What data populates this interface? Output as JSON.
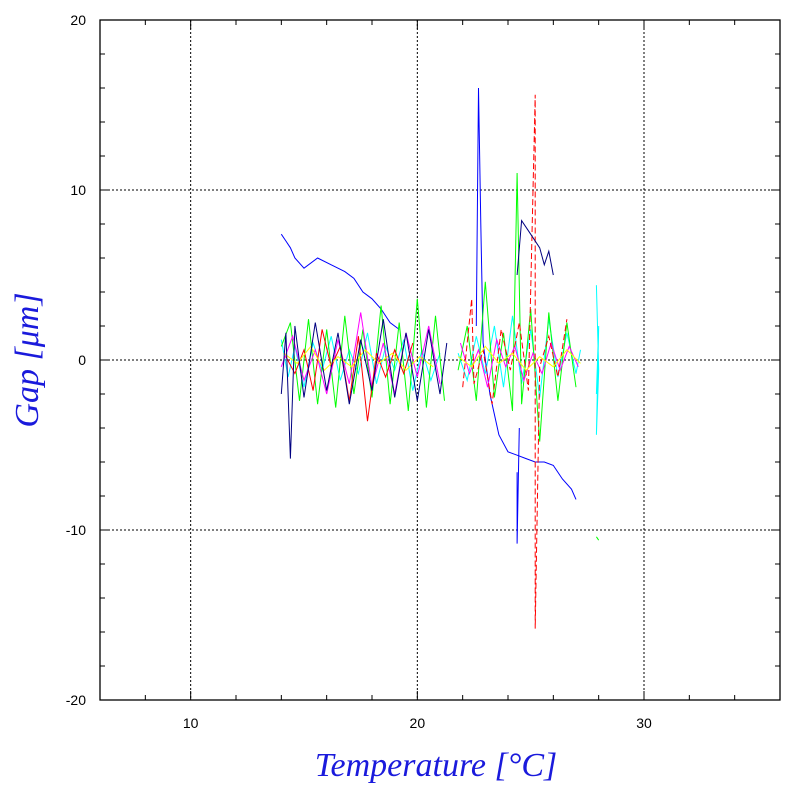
{
  "chart_data": {
    "type": "line",
    "title": "",
    "xlabel": "Temperature [°C]",
    "ylabel": "Gap [μm]",
    "xlim": [
      6,
      36
    ],
    "ylim": [
      -20,
      20
    ],
    "x_ticks": [
      10,
      20,
      30
    ],
    "y_ticks": [
      -20,
      -10,
      0,
      10,
      20
    ],
    "x_tick_labels": [
      "10",
      "20",
      "30"
    ],
    "y_tick_labels": [
      "-20",
      "-10",
      "0",
      "10",
      "20"
    ],
    "grid": true,
    "legend": "none",
    "series_colors": [
      "#0000ff",
      "#00ffff",
      "#00ff00",
      "#ff00ff",
      "#ff0000",
      "#ffff00",
      "#000080"
    ],
    "series": [
      {
        "values": [
          [
            14.0,
            7.4
          ],
          [
            14.2,
            7.0
          ],
          [
            14.4,
            6.6
          ],
          [
            14.6,
            6.0
          ],
          [
            15.0,
            5.4
          ],
          [
            15.6,
            6.0
          ],
          [
            16.2,
            5.6
          ],
          [
            16.8,
            5.2
          ],
          [
            17.2,
            4.8
          ],
          [
            17.6,
            4.0
          ],
          [
            18.0,
            3.6
          ],
          [
            18.4,
            3.0
          ],
          [
            18.8,
            2.2
          ],
          [
            19.2,
            1.8
          ]
        ]
      },
      {
        "values": [
          [
            14.0,
            1.2
          ],
          [
            14.3,
            -1.0
          ],
          [
            14.6,
            0.8
          ],
          [
            15.0,
            -1.6
          ],
          [
            15.4,
            1.0
          ],
          [
            15.8,
            -0.6
          ],
          [
            16.2,
            1.4
          ],
          [
            16.6,
            -1.2
          ],
          [
            17.0,
            0.6
          ],
          [
            17.4,
            -0.8
          ],
          [
            17.8,
            1.6
          ],
          [
            18.2,
            -1.4
          ],
          [
            18.6,
            0.8
          ],
          [
            19.0,
            -0.6
          ],
          [
            19.4,
            1.2
          ],
          [
            19.8,
            -1.8
          ],
          [
            20.2,
            0.6
          ],
          [
            20.6,
            -1.2
          ],
          [
            21.0,
            0.4
          ]
        ]
      },
      {
        "values": [
          [
            14.0,
            0.8
          ],
          [
            14.4,
            2.2
          ],
          [
            14.8,
            -2.4
          ],
          [
            15.2,
            2.4
          ],
          [
            15.6,
            -2.6
          ],
          [
            16.0,
            1.8
          ],
          [
            16.4,
            -2.8
          ],
          [
            16.8,
            2.6
          ],
          [
            17.2,
            -2.0
          ],
          [
            17.6,
            1.8
          ],
          [
            18.0,
            -2.2
          ],
          [
            18.4,
            3.2
          ],
          [
            18.8,
            -2.6
          ],
          [
            19.2,
            2.2
          ],
          [
            19.6,
            -3.0
          ],
          [
            20.0,
            3.6
          ],
          [
            20.4,
            -2.8
          ],
          [
            20.8,
            2.6
          ],
          [
            21.2,
            -2.4
          ]
        ]
      },
      {
        "values": [
          [
            14.0,
            -0.4
          ],
          [
            14.5,
            1.4
          ],
          [
            15.0,
            -1.2
          ],
          [
            15.5,
            0.6
          ],
          [
            16.0,
            -2.0
          ],
          [
            16.5,
            1.2
          ],
          [
            17.0,
            -1.4
          ],
          [
            17.5,
            2.8
          ],
          [
            18.0,
            -1.6
          ],
          [
            18.5,
            1.0
          ],
          [
            19.0,
            -2.0
          ],
          [
            19.5,
            1.6
          ],
          [
            20.0,
            -1.0
          ],
          [
            20.5,
            2.0
          ],
          [
            21.0,
            -1.4
          ]
        ]
      },
      {
        "values": [
          [
            14.2,
            0.2
          ],
          [
            14.6,
            -0.8
          ],
          [
            15.0,
            0.6
          ],
          [
            15.4,
            -1.8
          ],
          [
            15.8,
            1.8
          ],
          [
            16.2,
            -0.4
          ],
          [
            16.6,
            0.8
          ],
          [
            17.0,
            -2.4
          ],
          [
            17.4,
            1.4
          ],
          [
            17.8,
            -3.6
          ],
          [
            18.2,
            0.4
          ],
          [
            18.6,
            -1.0
          ],
          [
            19.0,
            0.6
          ],
          [
            19.4,
            -0.8
          ],
          [
            19.8,
            1.0
          ]
        ]
      },
      {
        "values": [
          [
            14.1,
            0.4
          ],
          [
            14.7,
            -0.2
          ],
          [
            15.3,
            0.8
          ],
          [
            15.9,
            -0.6
          ],
          [
            16.5,
            0.2
          ],
          [
            17.1,
            -0.4
          ],
          [
            17.7,
            0.6
          ],
          [
            18.3,
            -0.2
          ],
          [
            18.9,
            0.4
          ],
          [
            19.5,
            -0.6
          ],
          [
            20.1,
            0.2
          ],
          [
            20.7,
            -0.4
          ]
        ]
      },
      {
        "values": [
          [
            14.0,
            -2.0
          ],
          [
            14.2,
            1.6
          ],
          [
            14.4,
            -5.8
          ],
          [
            14.6,
            2.0
          ],
          [
            15.0,
            -2.2
          ],
          [
            15.5,
            2.2
          ],
          [
            16.0,
            -1.8
          ],
          [
            16.5,
            1.6
          ],
          [
            17.0,
            -2.6
          ],
          [
            17.5,
            1.2
          ],
          [
            18.0,
            -1.8
          ],
          [
            18.5,
            2.4
          ],
          [
            19.0,
            -2.2
          ],
          [
            19.5,
            1.6
          ],
          [
            20.0,
            -2.4
          ],
          [
            20.5,
            1.8
          ],
          [
            21.0,
            -2.0
          ],
          [
            21.3,
            1.0
          ]
        ]
      },
      {
        "values": [
          [
            22.6,
            2.0
          ],
          [
            22.7,
            16.0
          ],
          [
            22.8,
            8.0
          ],
          [
            22.9,
            1.0
          ],
          [
            23.2,
            -2.0
          ],
          [
            23.6,
            -4.4
          ],
          [
            24.0,
            -5.4
          ],
          [
            24.4,
            -5.6
          ],
          [
            24.8,
            -5.8
          ],
          [
            25.2,
            -6.0
          ],
          [
            25.6,
            -6.0
          ],
          [
            26.0,
            -6.2
          ],
          [
            26.4,
            -7.0
          ],
          [
            26.8,
            -7.6
          ],
          [
            27.0,
            -8.2
          ]
        ]
      },
      {
        "values": [
          [
            21.8,
            0.4
          ],
          [
            22.2,
            -1.2
          ],
          [
            22.6,
            1.4
          ],
          [
            23.0,
            -0.8
          ],
          [
            23.4,
            2.0
          ],
          [
            23.8,
            -1.6
          ],
          [
            24.2,
            2.6
          ],
          [
            24.6,
            -1.4
          ],
          [
            25.0,
            1.8
          ],
          [
            25.4,
            -2.2
          ],
          [
            25.8,
            2.4
          ],
          [
            26.2,
            -1.0
          ],
          [
            26.6,
            1.6
          ],
          [
            27.0,
            -0.8
          ],
          [
            27.2,
            0.6
          ]
        ]
      },
      {
        "values": [
          [
            21.8,
            -0.6
          ],
          [
            22.2,
            2.0
          ],
          [
            22.6,
            -2.4
          ],
          [
            23.0,
            4.6
          ],
          [
            23.4,
            -2.2
          ],
          [
            23.8,
            1.6
          ],
          [
            24.2,
            -3.0
          ],
          [
            24.4,
            11.0
          ],
          [
            24.6,
            -2.6
          ],
          [
            25.0,
            3.0
          ],
          [
            25.4,
            -4.8
          ],
          [
            25.8,
            2.8
          ],
          [
            26.2,
            -2.4
          ],
          [
            26.6,
            2.2
          ],
          [
            27.0,
            -1.6
          ]
        ]
      },
      {
        "values": [
          [
            21.9,
            1.0
          ],
          [
            22.3,
            -0.8
          ],
          [
            22.7,
            0.6
          ],
          [
            23.1,
            -1.6
          ],
          [
            23.5,
            1.2
          ],
          [
            23.9,
            -0.4
          ],
          [
            24.3,
            0.8
          ],
          [
            24.7,
            -1.2
          ],
          [
            25.1,
            0.4
          ],
          [
            25.5,
            -0.8
          ],
          [
            25.9,
            1.0
          ],
          [
            26.3,
            -0.6
          ],
          [
            26.7,
            0.8
          ],
          [
            27.1,
            -0.4
          ]
        ]
      },
      {
        "values": [
          [
            22.0,
            -1.6
          ],
          [
            22.4,
            3.6
          ],
          [
            22.5,
            -1.4
          ],
          [
            22.9,
            0.6
          ],
          [
            23.3,
            -2.6
          ],
          [
            23.7,
            1.8
          ],
          [
            24.1,
            -0.6
          ],
          [
            24.5,
            2.2
          ],
          [
            24.9,
            -1.8
          ],
          [
            25.2,
            15.6
          ],
          [
            25.2,
            -15.8
          ],
          [
            25.4,
            -0.4
          ],
          [
            25.8,
            1.4
          ],
          [
            26.2,
            -1.0
          ],
          [
            26.6,
            2.4
          ]
        ]
      },
      {
        "values": [
          [
            21.8,
            0.2
          ],
          [
            22.4,
            -0.4
          ],
          [
            23.0,
            0.8
          ],
          [
            23.6,
            -0.2
          ],
          [
            24.2,
            0.4
          ],
          [
            24.8,
            -0.6
          ],
          [
            25.4,
            0.2
          ],
          [
            26.0,
            -0.4
          ],
          [
            26.6,
            0.6
          ],
          [
            27.2,
            -0.2
          ]
        ]
      },
      {
        "values": [
          [
            24.4,
            5.0
          ],
          [
            24.6,
            8.2
          ],
          [
            25.0,
            7.4
          ],
          [
            25.4,
            6.6
          ],
          [
            25.6,
            5.6
          ],
          [
            25.8,
            6.4
          ],
          [
            26.0,
            5.0
          ]
        ]
      },
      {
        "values": [
          [
            24.4,
            -6.6
          ],
          [
            24.4,
            -10.8
          ],
          [
            24.5,
            -4.0
          ]
        ]
      },
      {
        "values": [
          [
            27.9,
            4.4
          ],
          [
            28.0,
            -0.6
          ],
          [
            27.9,
            -4.4
          ],
          [
            28.0,
            2.0
          ],
          [
            27.9,
            -2.0
          ]
        ]
      },
      {
        "values": [
          [
            27.9,
            -10.4
          ],
          [
            28.0,
            -10.6
          ]
        ]
      }
    ]
  }
}
